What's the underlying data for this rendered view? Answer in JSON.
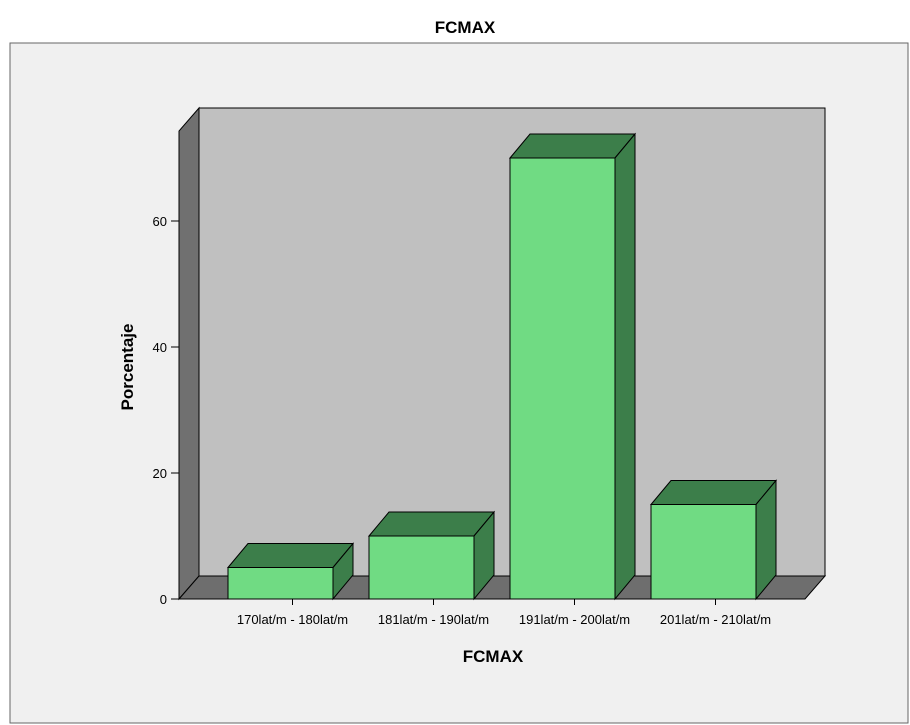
{
  "chart_data": {
    "type": "bar",
    "style": "3d",
    "title": "FCMAX",
    "xlabel": "FCMAX",
    "ylabel": "Porcentaje",
    "categories": [
      "170lat/m - 180lat/m",
      "181lat/m - 190lat/m",
      "191lat/m - 200lat/m",
      "201lat/m - 210lat/m"
    ],
    "values": [
      5,
      10,
      70,
      15
    ],
    "yticks": [
      "0",
      "20",
      "40",
      "60"
    ],
    "ylim": [
      0,
      76
    ],
    "grid": false,
    "legend": "none",
    "colors": {
      "bar_front": "#70db83",
      "bar_side": "#3c7e4a",
      "bar_top": "#3c7e4a",
      "back_wall": "#c0c0c0",
      "side_wall": "#707070",
      "floor": "#6e6e6e",
      "frame_background": "#f0f0f0"
    }
  }
}
